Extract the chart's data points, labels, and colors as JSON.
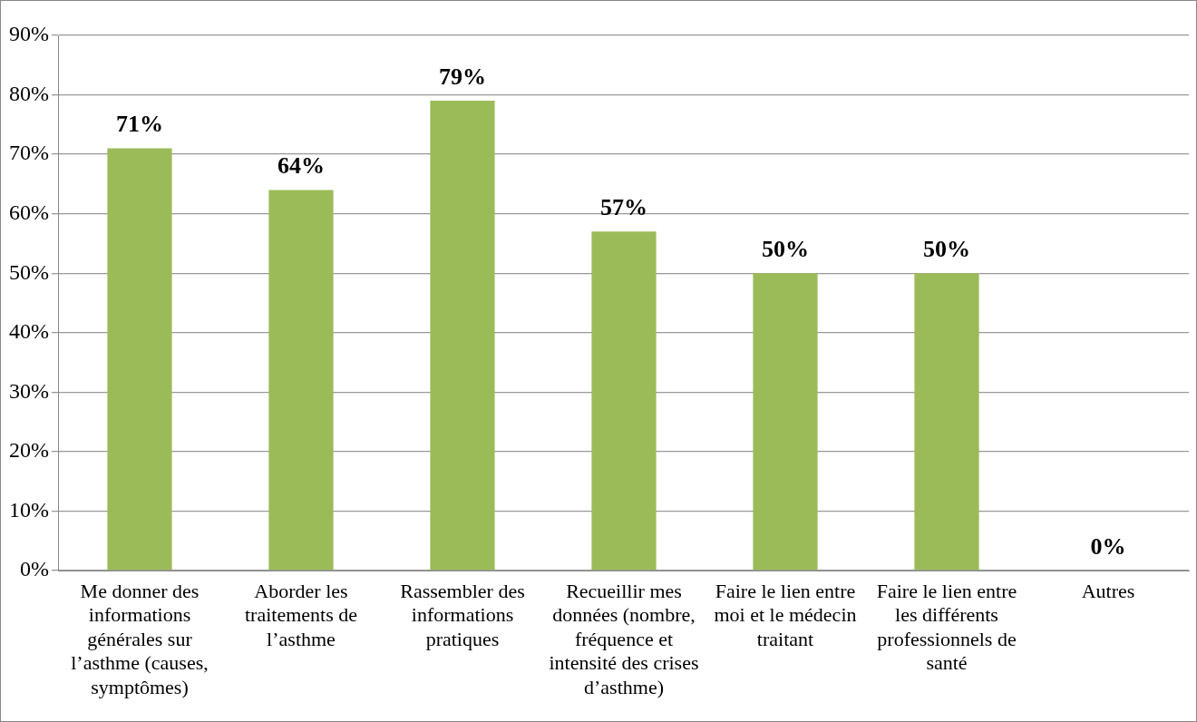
{
  "chart_data": {
    "type": "bar",
    "categories": [
      "Me donner des informations générales sur l’asthme (causes, symptômes)",
      "Aborder les traitements de l’asthme",
      "Rassembler des informations pratiques",
      "Recueillir mes données (nombre, fréquence et intensité des crises d’asthme)",
      "Faire le lien entre moi et le médecin traitant",
      "Faire le lien entre les différents professionnels de santé",
      "Autres"
    ],
    "values": [
      71,
      64,
      79,
      57,
      50,
      50,
      0
    ],
    "value_labels": [
      "71%",
      "64%",
      "79%",
      "57%",
      "50%",
      "50%",
      "0%"
    ],
    "color": "#9bbb59",
    "ylim": [
      0,
      90
    ],
    "yticks": [
      {
        "value": 0,
        "label": "0%"
      },
      {
        "value": 10,
        "label": "10%"
      },
      {
        "value": 20,
        "label": "20%"
      },
      {
        "value": 30,
        "label": "30%"
      },
      {
        "value": 40,
        "label": "40%"
      },
      {
        "value": 50,
        "label": "50%"
      },
      {
        "value": 60,
        "label": "60%"
      },
      {
        "value": 70,
        "label": "70%"
      },
      {
        "value": 80,
        "label": "80%"
      },
      {
        "value": 90,
        "label": "90%"
      }
    ],
    "grid": "y",
    "legend": false
  }
}
